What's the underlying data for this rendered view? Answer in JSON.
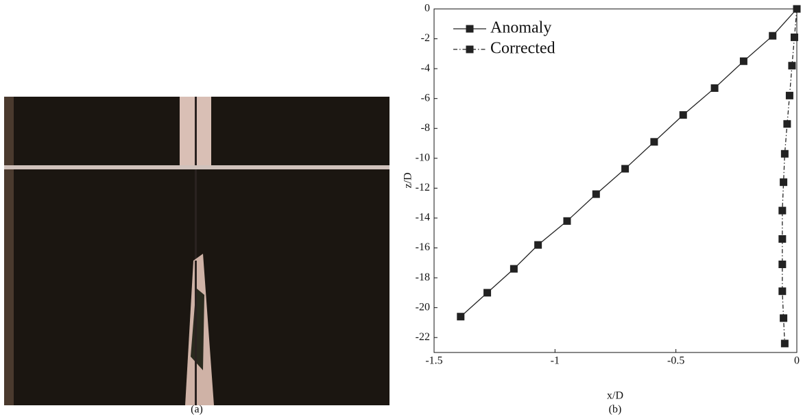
{
  "chart_data": {
    "type": "line",
    "xlabel": "x/D",
    "ylabel": "z/D",
    "xlim": [
      -1.5,
      0
    ],
    "xticks": [
      -1.5,
      -1,
      -0.5,
      0
    ],
    "ylim": [
      -23,
      0
    ],
    "yticks": [
      0,
      -2,
      -4,
      -6,
      -8,
      -10,
      -12,
      -14,
      -16,
      -18,
      -20,
      -22
    ],
    "legend": "upper-left",
    "grid": false,
    "series": [
      {
        "name": "Anomaly",
        "color": "#222222",
        "linestyle": "solid",
        "x": [
          0,
          -0.1,
          -0.22,
          -0.34,
          -0.47,
          -0.59,
          -0.71,
          -0.83,
          -0.95,
          -1.07,
          -1.17,
          -1.28,
          -1.39
        ],
        "values": [
          0,
          -1.8,
          -3.5,
          -5.3,
          -7.1,
          -8.9,
          -10.7,
          -12.4,
          -14.2,
          -15.8,
          -17.4,
          -19.0,
          -20.6
        ]
      },
      {
        "name": "Corrected",
        "color": "#222222",
        "linestyle": "dashdot",
        "x": [
          0,
          -0.01,
          -0.02,
          -0.03,
          -0.04,
          -0.05,
          -0.055,
          -0.06,
          -0.06,
          -0.06,
          -0.06,
          -0.055,
          -0.05
        ],
        "values": [
          0,
          -1.9,
          -3.8,
          -5.8,
          -7.7,
          -9.7,
          -11.6,
          -13.5,
          -15.4,
          -17.1,
          -18.9,
          -20.7,
          -22.4
        ]
      }
    ]
  },
  "captions": [
    "(a)",
    "(b)"
  ]
}
